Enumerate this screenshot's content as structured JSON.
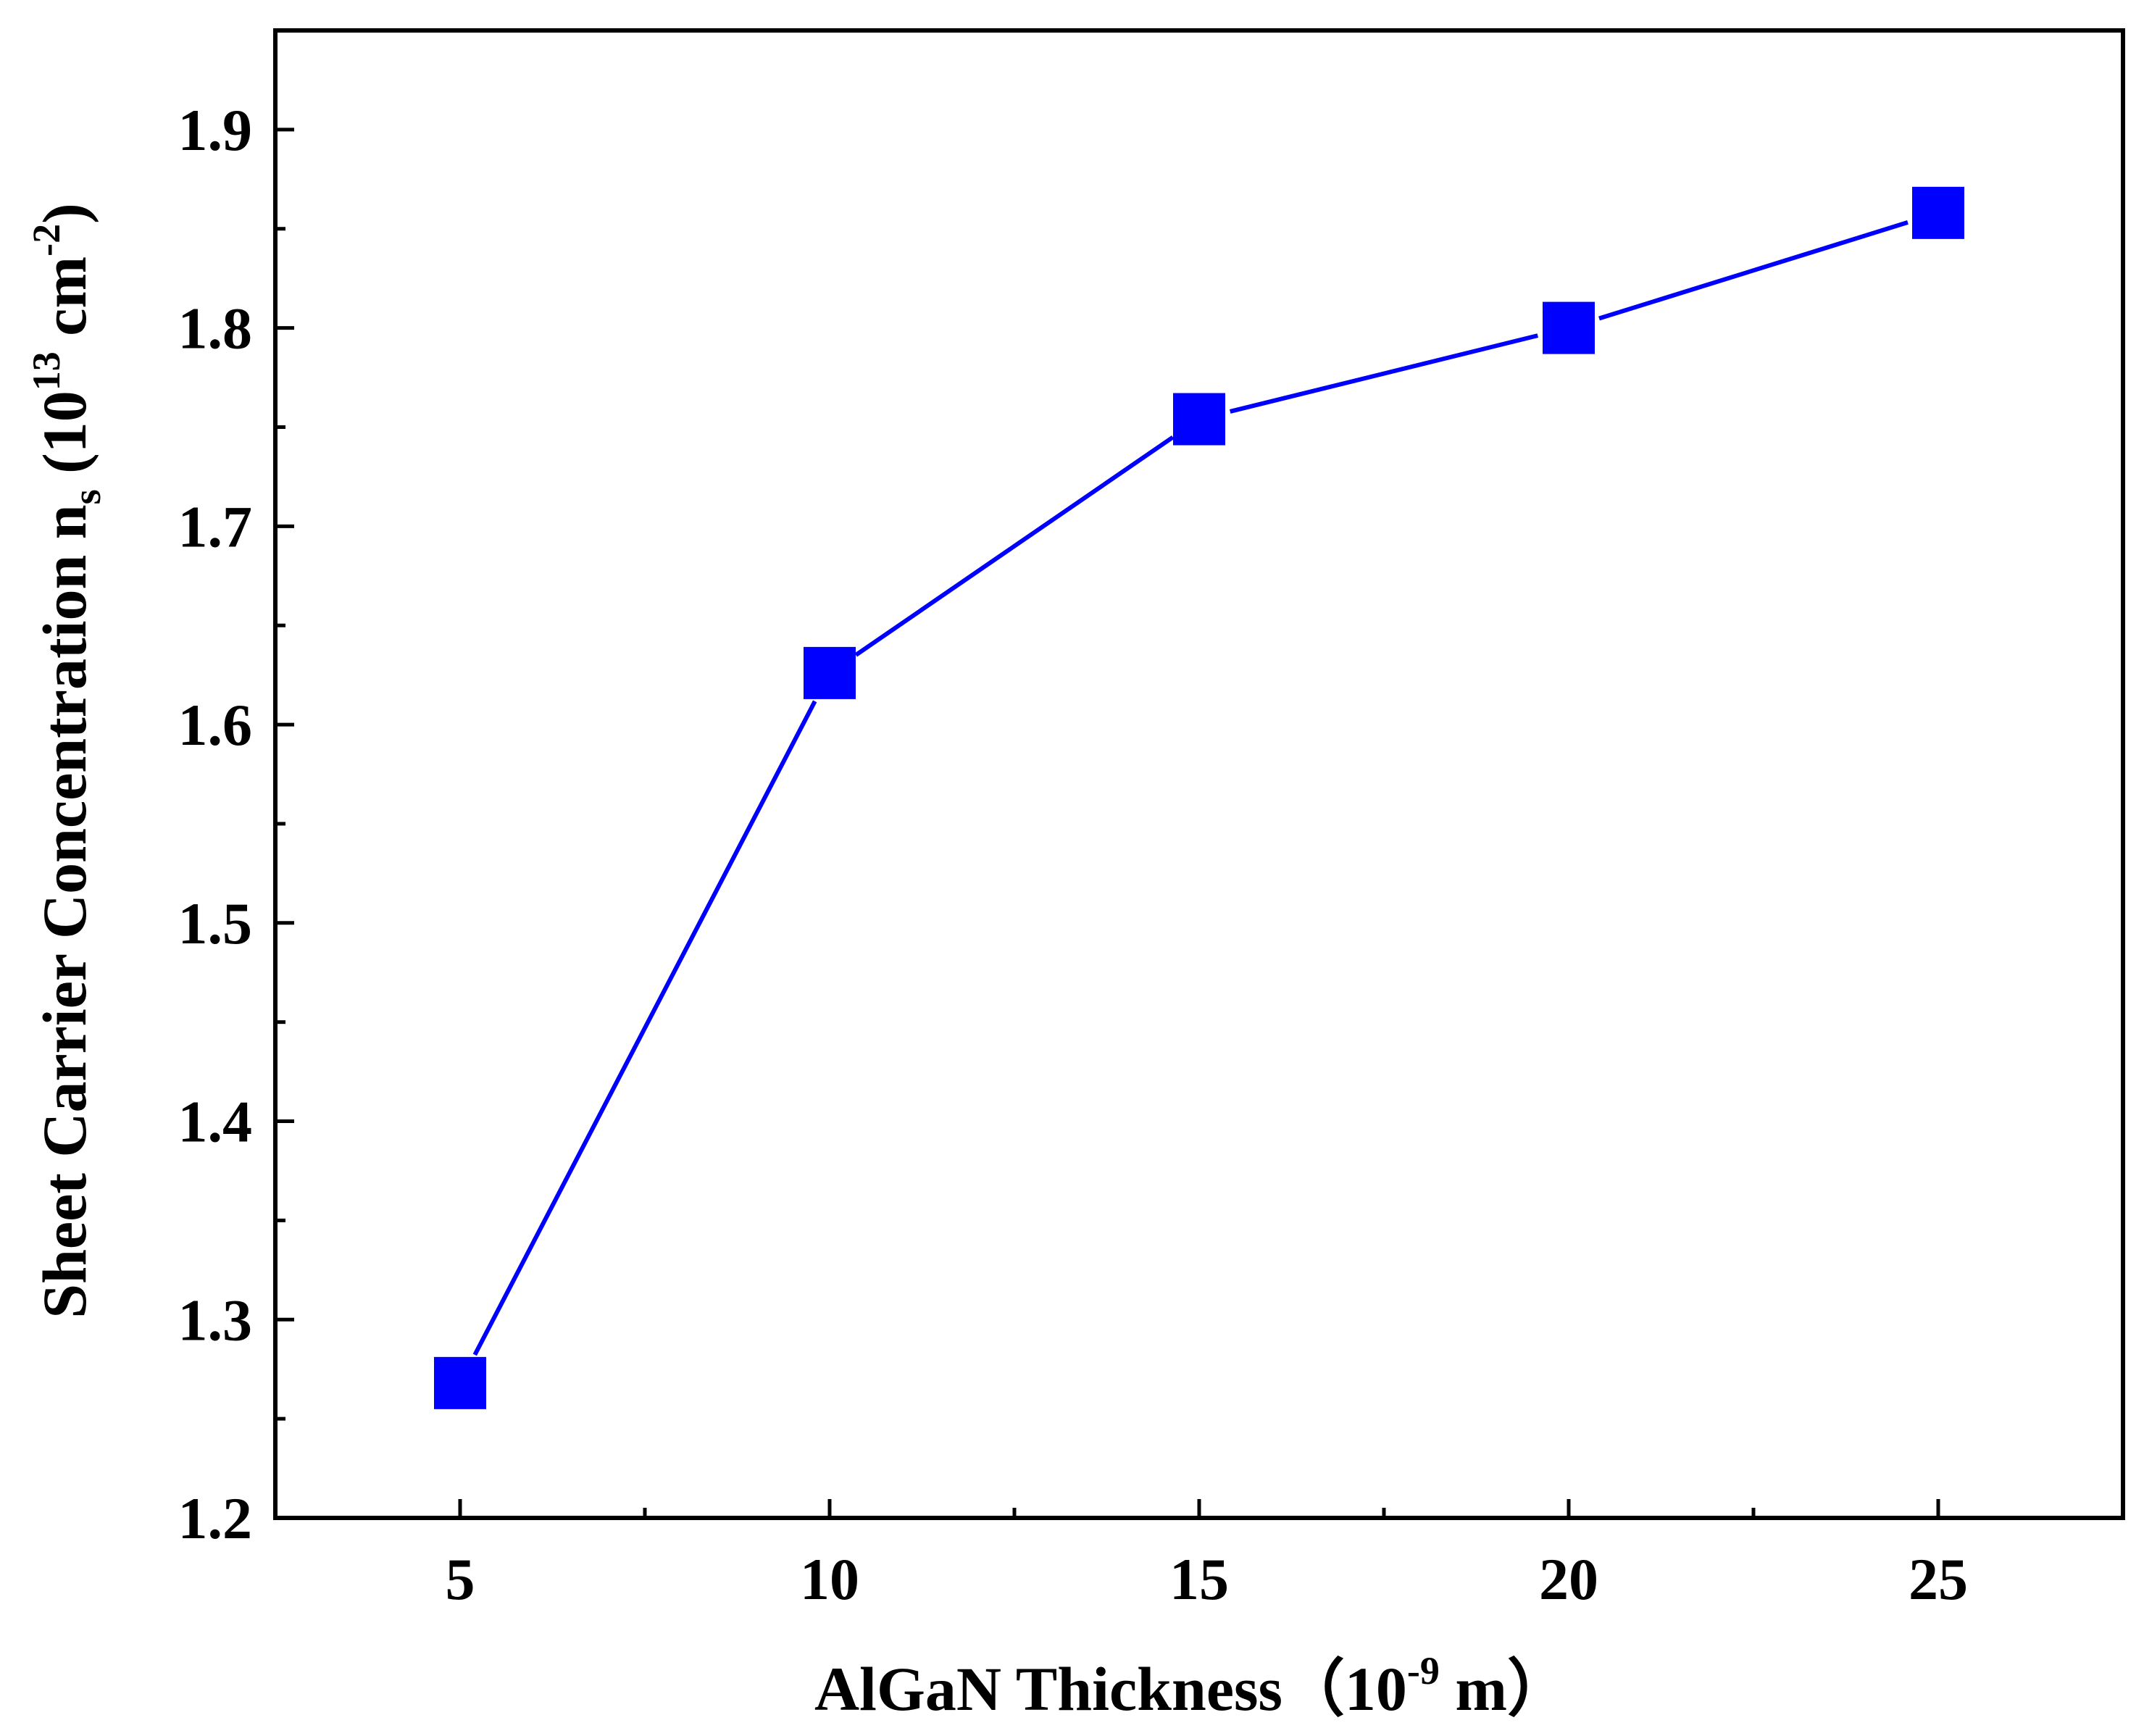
{
  "chart_data": {
    "type": "line",
    "title": "",
    "xlabel": {
      "main": "AlGaN Thickness（10",
      "exponent": "-9",
      "unit": " m）"
    },
    "ylabel": {
      "main": "Sheet Carrier Concentration n",
      "subscript": "s",
      "unit_open": " (10",
      "exponent": "13",
      "unit_mid": " cm",
      "exponent2": "-2",
      "unit_close": ")"
    },
    "x_ticks": [
      "5",
      "10",
      "15",
      "20",
      "25"
    ],
    "y_ticks": [
      "1.2",
      "1.3",
      "1.4",
      "1.5",
      "1.6",
      "1.7",
      "1.8",
      "1.9"
    ],
    "xlim": [
      2.5,
      27.5
    ],
    "ylim": [
      1.2,
      1.95
    ],
    "grid": false,
    "series": [
      {
        "name": "ns",
        "color": "#0000ff",
        "marker": "square",
        "x": [
          5,
          10,
          15,
          20,
          25
        ],
        "y": [
          1.268,
          1.626,
          1.754,
          1.8,
          1.858
        ]
      }
    ]
  }
}
